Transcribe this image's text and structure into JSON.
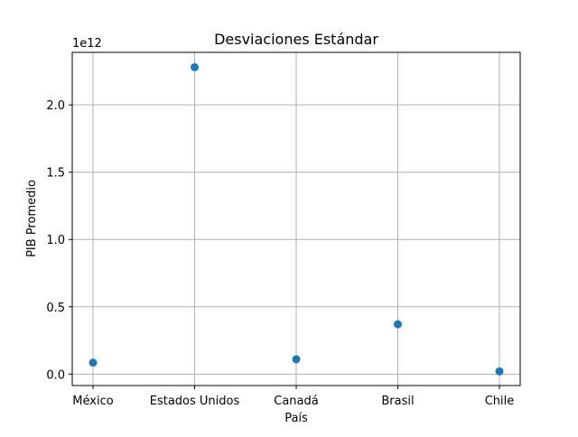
{
  "chart_data": {
    "type": "scatter",
    "title": "Desviaciones Estándar",
    "xlabel": "País",
    "ylabel": "PIB Promedio",
    "y_offset_label": "1e12",
    "categories": [
      "México",
      "Estados Unidos",
      "Canadá",
      "Brasil",
      "Chile"
    ],
    "values": [
      0.085,
      2.28,
      0.11,
      0.37,
      0.02
    ],
    "value_unit_multiplier": 1000000000000.0,
    "ylim": [
      -0.085,
      2.39
    ],
    "yticks": [
      0.0,
      0.5,
      1.0,
      1.5,
      2.0
    ],
    "ytick_labels": [
      "0.0",
      "0.5",
      "1.0",
      "1.5",
      "2.0"
    ],
    "grid": true,
    "marker_color": "#1f77b4"
  }
}
